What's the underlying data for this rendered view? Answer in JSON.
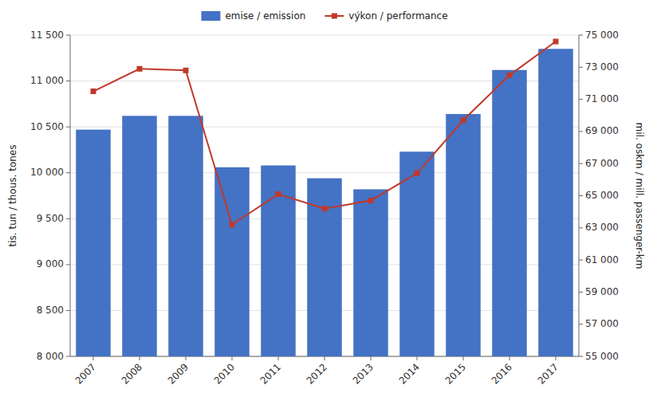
{
  "chart_data": {
    "type": "bar",
    "categories": [
      "2007",
      "2008",
      "2009",
      "2010",
      "2011",
      "2012",
      "2013",
      "2014",
      "2015",
      "2016",
      "2017"
    ],
    "series": [
      {
        "name": "emise / emission",
        "type": "bar",
        "color": "#4472C4",
        "values": [
          10470,
          10620,
          10620,
          10060,
          10080,
          9940,
          9820,
          10230,
          10640,
          11120,
          11350
        ]
      },
      {
        "name": "výkon / performance",
        "type": "line",
        "axis": "y2",
        "color": "#C0392B",
        "marker": "square",
        "values": [
          71500,
          72900,
          72800,
          63200,
          65100,
          64200,
          64700,
          66400,
          69700,
          72500,
          74600
        ]
      }
    ],
    "ylabel": "tis. tun / thous. tones",
    "y2label": "mil. oskm / mill. passenger-km",
    "ylim": [
      8000,
      11500
    ],
    "yticks": [
      {
        "value": 8000,
        "label": "8 000"
      },
      {
        "value": 8500,
        "label": "8 500"
      },
      {
        "value": 9000,
        "label": "9 000"
      },
      {
        "value": 9500,
        "label": "9 500"
      },
      {
        "value": 10000,
        "label": "10 000"
      },
      {
        "value": 10500,
        "label": "10 500"
      },
      {
        "value": 11000,
        "label": "11 000"
      },
      {
        "value": 11500,
        "label": "11 500"
      }
    ],
    "y2lim": [
      55000,
      75000
    ],
    "y2ticks": [
      {
        "value": 55000,
        "label": "55 000"
      },
      {
        "value": 57000,
        "label": "57 000"
      },
      {
        "value": 59000,
        "label": "59 000"
      },
      {
        "value": 61000,
        "label": "61 000"
      },
      {
        "value": 63000,
        "label": "63 000"
      },
      {
        "value": 65000,
        "label": "65 000"
      },
      {
        "value": 67000,
        "label": "67 000"
      },
      {
        "value": 69000,
        "label": "69 000"
      },
      {
        "value": 71000,
        "label": "71 000"
      },
      {
        "value": 73000,
        "label": "73 000"
      },
      {
        "value": 75000,
        "label": "75 000"
      }
    ],
    "grid": true,
    "legend": "top"
  }
}
